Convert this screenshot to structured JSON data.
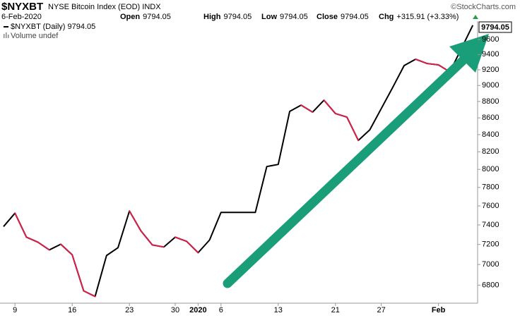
{
  "chart_data": {
    "type": "line",
    "title": "$NYXBT",
    "subtitle": "NYSE Bitcoin Index (EOD) INDX",
    "date": "6-Feb-2020",
    "quote": [
      {
        "label": "Open",
        "value": "9794.05"
      },
      {
        "label": "High",
        "value": "9794.05"
      },
      {
        "label": "Low",
        "value": "9794.05"
      },
      {
        "label": "Close",
        "value": "9794.05"
      },
      {
        "label": "Chg",
        "value": "+315.91 (+3.33%)"
      }
    ],
    "source": "©StockCharts.com",
    "volume_note": "Volume undef",
    "last_value_label": "9794.05",
    "categories": [
      null,
      "9",
      null,
      null,
      null,
      null,
      "16",
      null,
      null,
      null,
      null,
      "23",
      null,
      null,
      null,
      "30",
      null,
      "2020",
      null,
      "6",
      null,
      null,
      null,
      null,
      "13",
      null,
      null,
      null,
      null,
      "21",
      null,
      null,
      null,
      "27",
      null,
      null,
      null,
      null,
      "Feb",
      null,
      null,
      null
    ],
    "series": [
      {
        "name": "$NYXBT (Daily) 9794.05",
        "color": "#000000",
        "down_color": "#d6204a",
        "values": [
          7383,
          7523,
          7274,
          7223,
          7145,
          7202,
          7096,
          6746,
          6693,
          7089,
          7167,
          7546,
          7339,
          7195,
          7174,
          7274,
          7231,
          7117,
          7245,
          7531,
          7531,
          7531,
          7531,
          8032,
          8056,
          8678,
          8755,
          8669,
          8816,
          8652,
          8609,
          8332,
          8457,
          8712,
          8975,
          9255,
          9338,
          9282,
          9264,
          9173,
          9478.14,
          9794.05
        ]
      }
    ],
    "ylim": [
      6630,
      9870
    ],
    "yticks": [
      6800,
      7000,
      7200,
      7400,
      7600,
      7800,
      8000,
      8200,
      8400,
      8600,
      8800,
      9000,
      9200,
      9400,
      9600
    ],
    "log_scale": true,
    "grid": false
  }
}
